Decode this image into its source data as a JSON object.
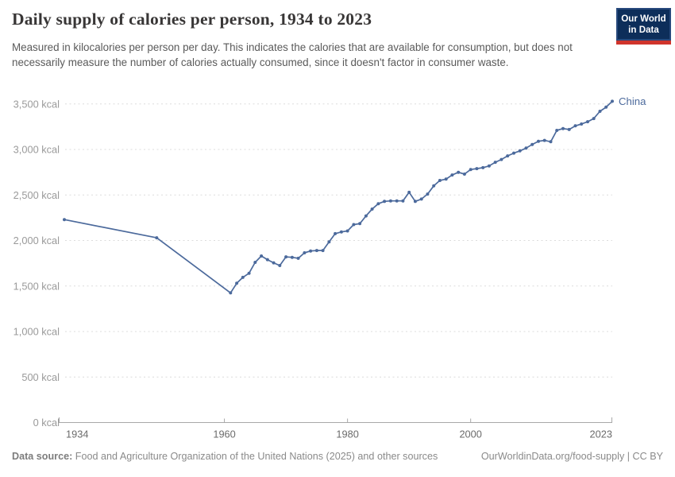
{
  "header": {
    "title": "Daily supply of calories per person, 1934 to 2023",
    "subtitle": "Measured in kilocalories per person per day. This indicates the calories that are available for consumption, but does not necessarily measure the number of calories actually consumed, since it doesn't factor in consumer waste.",
    "logo": {
      "line1": "Our World",
      "line2": "in Data"
    }
  },
  "colors": {
    "brand_navy": "#0D2E5A",
    "brand_navy_border": "#27497C",
    "brand_red": "#D0342C",
    "series_blue": "#4C6A9C",
    "gridline": "#DCDCDC",
    "axis": "#A8A8A8"
  },
  "chart_data": {
    "type": "line",
    "title": "Daily supply of calories per person, 1934 to 2023",
    "xlabel": "",
    "ylabel": "kcal per person per day",
    "xlim": [
      1934,
      2023
    ],
    "ylim": [
      0,
      3500
    ],
    "grid": "horizontal-dashed",
    "legend_position": "end-of-line-label",
    "y_ticks": [
      {
        "value": 0,
        "label": "0 kcal"
      },
      {
        "value": 500,
        "label": "500 kcal"
      },
      {
        "value": 1000,
        "label": "1,000 kcal"
      },
      {
        "value": 1500,
        "label": "1,500 kcal"
      },
      {
        "value": 2000,
        "label": "2,000 kcal"
      },
      {
        "value": 2500,
        "label": "2,500 kcal"
      },
      {
        "value": 3000,
        "label": "3,000 kcal"
      },
      {
        "value": 3500,
        "label": "3,500 kcal"
      }
    ],
    "x_ticks": [
      {
        "value": 1934,
        "label": "1934"
      },
      {
        "value": 1960,
        "label": "1960"
      },
      {
        "value": 1980,
        "label": "1980"
      },
      {
        "value": 2000,
        "label": "2000"
      },
      {
        "value": 2023,
        "label": "2023"
      }
    ],
    "series": [
      {
        "name": "China",
        "color": "#4C6A9C",
        "points": [
          [
            1934,
            2230
          ],
          [
            1949,
            2030
          ],
          [
            1961,
            1425
          ],
          [
            1962,
            1530
          ],
          [
            1963,
            1595
          ],
          [
            1964,
            1640
          ],
          [
            1965,
            1760
          ],
          [
            1966,
            1830
          ],
          [
            1967,
            1790
          ],
          [
            1968,
            1755
          ],
          [
            1969,
            1725
          ],
          [
            1970,
            1820
          ],
          [
            1971,
            1815
          ],
          [
            1972,
            1805
          ],
          [
            1973,
            1865
          ],
          [
            1974,
            1885
          ],
          [
            1975,
            1890
          ],
          [
            1976,
            1890
          ],
          [
            1977,
            1985
          ],
          [
            1978,
            2075
          ],
          [
            1979,
            2095
          ],
          [
            1980,
            2105
          ],
          [
            1981,
            2175
          ],
          [
            1982,
            2185
          ],
          [
            1983,
            2270
          ],
          [
            1984,
            2345
          ],
          [
            1985,
            2405
          ],
          [
            1986,
            2430
          ],
          [
            1987,
            2435
          ],
          [
            1988,
            2435
          ],
          [
            1989,
            2435
          ],
          [
            1990,
            2530
          ],
          [
            1991,
            2430
          ],
          [
            1992,
            2455
          ],
          [
            1993,
            2510
          ],
          [
            1994,
            2600
          ],
          [
            1995,
            2660
          ],
          [
            1996,
            2675
          ],
          [
            1997,
            2720
          ],
          [
            1998,
            2750
          ],
          [
            1999,
            2730
          ],
          [
            2000,
            2780
          ],
          [
            2001,
            2790
          ],
          [
            2002,
            2800
          ],
          [
            2003,
            2820
          ],
          [
            2004,
            2860
          ],
          [
            2005,
            2890
          ],
          [
            2006,
            2930
          ],
          [
            2007,
            2960
          ],
          [
            2008,
            2985
          ],
          [
            2009,
            3015
          ],
          [
            2010,
            3055
          ],
          [
            2011,
            3090
          ],
          [
            2012,
            3100
          ],
          [
            2013,
            3085
          ],
          [
            2014,
            3210
          ],
          [
            2015,
            3230
          ],
          [
            2016,
            3220
          ],
          [
            2017,
            3260
          ],
          [
            2018,
            3280
          ],
          [
            2019,
            3305
          ],
          [
            2020,
            3340
          ],
          [
            2021,
            3420
          ],
          [
            2022,
            3465
          ],
          [
            2023,
            3530
          ]
        ]
      }
    ]
  },
  "footer": {
    "source_label": "Data source:",
    "source_text": "Food and Agriculture Organization of the United Nations (2025) and other sources",
    "attribution": "OurWorldinData.org/food-supply | CC BY"
  }
}
